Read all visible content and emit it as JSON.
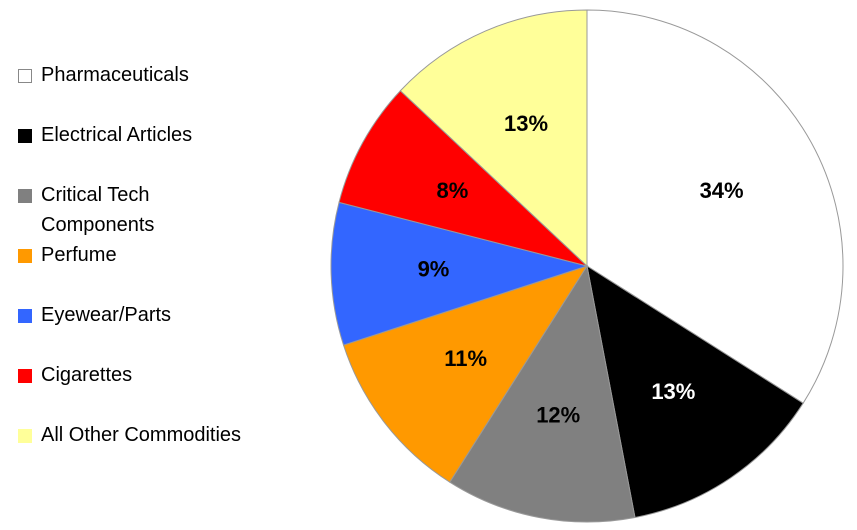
{
  "chart_data": {
    "type": "pie",
    "categories": [
      "Pharmaceuticals",
      "Electrical Articles",
      "Critical Tech Components",
      "Perfume",
      "Eyewear/Parts",
      "Cigarettes",
      "All Other Commodities"
    ],
    "values": [
      34,
      13,
      12,
      11,
      9,
      8,
      13
    ],
    "value_labels": [
      "34%",
      "13%",
      "12%",
      "11%",
      "9%",
      "8%",
      "13%"
    ],
    "colors": [
      "#ffffff",
      "#000000",
      "#808080",
      "#ff9900",
      "#3366ff",
      "#ff0000",
      "#ffff99"
    ],
    "legend": "left"
  }
}
